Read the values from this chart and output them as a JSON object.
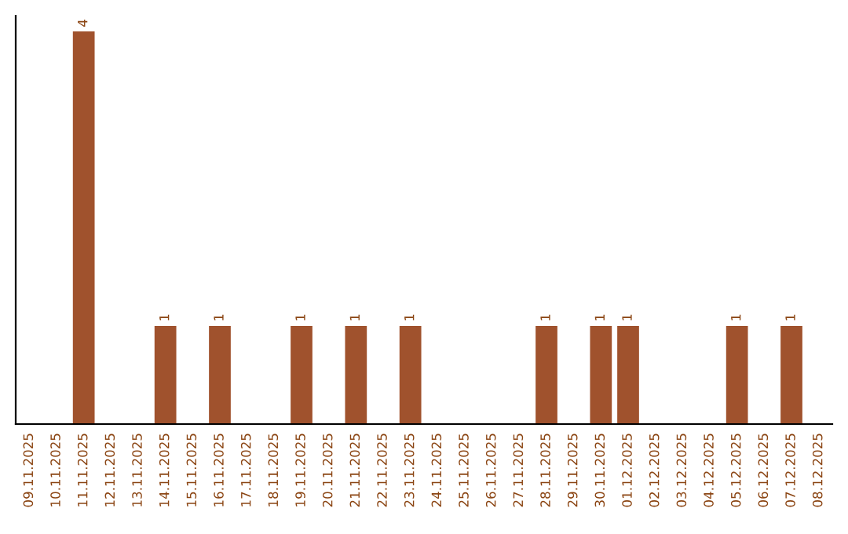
{
  "chart_data": {
    "type": "bar",
    "categories": [
      "09.11.2025",
      "10.11.2025",
      "11.11.2025",
      "12.11.2025",
      "13.11.2025",
      "14.11.2025",
      "15.11.2025",
      "16.11.2025",
      "17.11.2025",
      "18.11.2025",
      "19.11.2025",
      "20.11.2025",
      "21.11.2025",
      "22.11.2025",
      "23.11.2025",
      "24.11.2025",
      "25.11.2025",
      "26.11.2025",
      "27.11.2025",
      "28.11.2025",
      "29.11.2025",
      "30.11.2025",
      "01.12.2025",
      "02.12.2025",
      "03.12.2025",
      "04.12.2025",
      "05.12.2025",
      "06.12.2025",
      "07.12.2025",
      "08.12.2025"
    ],
    "values": [
      0,
      0,
      4,
      0,
      0,
      1,
      0,
      1,
      0,
      0,
      1,
      0,
      1,
      0,
      1,
      0,
      0,
      0,
      0,
      1,
      0,
      1,
      1,
      0,
      0,
      0,
      1,
      0,
      1,
      0
    ],
    "color": "#a0522d",
    "value_labels": [
      null,
      null,
      "4",
      null,
      null,
      "1",
      null,
      "1",
      null,
      null,
      "1",
      null,
      "1",
      null,
      "1",
      null,
      null,
      null,
      null,
      "1",
      null,
      "1",
      "1",
      null,
      null,
      null,
      "1",
      null,
      "1",
      null
    ],
    "grid": false
  }
}
